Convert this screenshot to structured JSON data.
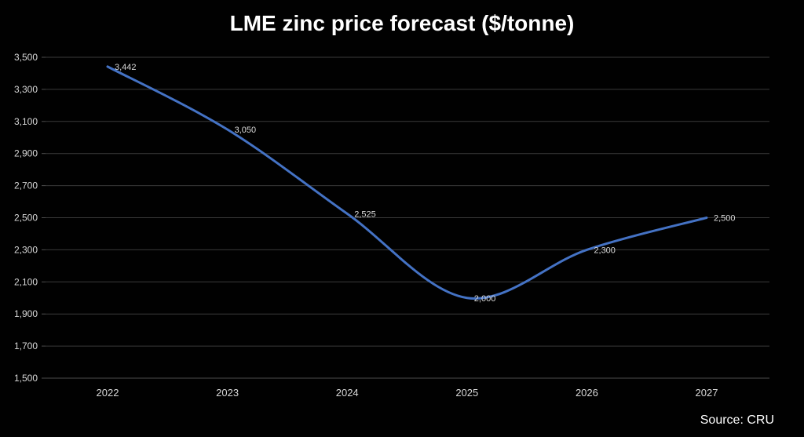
{
  "chart": {
    "title": "LME zinc price forecast ($/tonne)",
    "source": "Source: CRU"
  },
  "chart_data": {
    "type": "line",
    "title": "LME zinc price forecast ($/tonne)",
    "xlabel": "",
    "ylabel": "",
    "categories": [
      "2022",
      "2023",
      "2024",
      "2025",
      "2026",
      "2027"
    ],
    "series": [
      {
        "name": "LME zinc price forecast",
        "values": [
          3442,
          3050,
          2525,
          2000,
          2300,
          2500
        ],
        "data_labels": [
          "3,442",
          "3,050",
          "2,525",
          "2,000",
          "2,300",
          "2,500"
        ]
      }
    ],
    "ylim": [
      1500,
      3500
    ],
    "ytick_step": 200,
    "ytick_values": [
      1500,
      1700,
      1900,
      2100,
      2300,
      2500,
      2700,
      2900,
      3100,
      3300,
      3500
    ],
    "ytick_labels": [
      "1,500",
      "1,700",
      "1,900",
      "2,100",
      "2,300",
      "2,500",
      "2,700",
      "2,900",
      "3,100",
      "3,300",
      "3,500"
    ],
    "grid": true,
    "legend": "none",
    "source": "Source: CRU",
    "colors": {
      "line": "#4472c4",
      "grid": "#3a3a3a",
      "axis_line": "#4d4d4d",
      "axis_text": "#d9d9d9",
      "data_label_text": "#d9d9d9",
      "title_text": "#ffffff",
      "background": "#010101"
    }
  }
}
